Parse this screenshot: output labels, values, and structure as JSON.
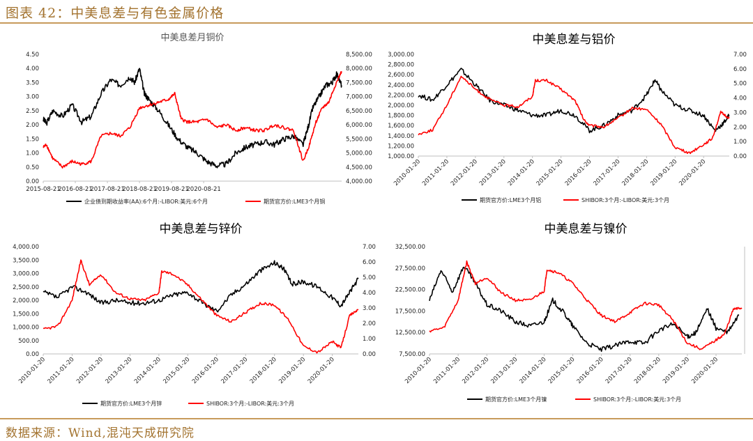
{
  "header": {
    "title": "图表 42：中美息差与有色金属价格"
  },
  "footer": {
    "source": "数据来源：Wind,混沌天成研究院"
  },
  "chart_data": [
    {
      "type": "line",
      "title": "中美息差月铜价",
      "x_ticks": [
        "2015-08-21",
        "2016-08-21",
        "2017-08-21",
        "2018-08-21",
        "2019-08-21",
        "2020-08-21"
      ],
      "y_left_ticks": [
        "0.00",
        "0.50",
        "1.00",
        "1.50",
        "2.00",
        "2.50",
        "3.00",
        "3.50",
        "4.00",
        "4.50"
      ],
      "y_right_ticks": [
        "4,000.00",
        "4,500.00",
        "5,000.00",
        "5,500.00",
        "6,000.00",
        "6,500.00",
        "7,000.00",
        "7,500.00",
        "8,000.00",
        "8,500.00"
      ],
      "ylim_left": [
        0,
        4.5
      ],
      "ylim_right": [
        4000,
        8500
      ],
      "series": [
        {
          "name": "企业债到期收益率(AA):6个月:-LIBOR:美元:6个月",
          "axis": "left",
          "color": "#000000",
          "points": [
            [
              0,
              2.2
            ],
            [
              0.1,
              2.05
            ],
            [
              0.3,
              2.5
            ],
            [
              0.6,
              2.3
            ],
            [
              0.9,
              2.7
            ],
            [
              1.2,
              2.1
            ],
            [
              1.5,
              2.3
            ],
            [
              1.8,
              3.1
            ],
            [
              2.1,
              3.6
            ],
            [
              2.4,
              3.4
            ],
            [
              2.7,
              3.7
            ],
            [
              2.85,
              3.5
            ],
            [
              3.0,
              4.0
            ],
            [
              3.15,
              3.1
            ],
            [
              3.3,
              2.9
            ],
            [
              3.6,
              2.5
            ],
            [
              3.9,
              2.0
            ],
            [
              4.2,
              1.5
            ],
            [
              4.5,
              1.2
            ],
            [
              4.8,
              1.0
            ],
            [
              5.1,
              0.7
            ],
            [
              5.4,
              0.55
            ],
            [
              5.7,
              0.6
            ],
            [
              6.0,
              1.0
            ],
            [
              6.3,
              1.2
            ],
            [
              6.6,
              1.3
            ],
            [
              6.9,
              1.4
            ],
            [
              7.2,
              1.3
            ],
            [
              7.5,
              1.5
            ],
            [
              7.8,
              1.6
            ],
            [
              8.1,
              1.3
            ],
            [
              8.25,
              1.9
            ],
            [
              8.4,
              2.6
            ],
            [
              8.6,
              3.0
            ],
            [
              8.8,
              3.4
            ],
            [
              9.0,
              3.5
            ],
            [
              9.15,
              3.8
            ],
            [
              9.3,
              3.4
            ]
          ]
        },
        {
          "name": "期货官方价:LME3个月铜",
          "axis": "right",
          "color": "#ff0000",
          "points": [
            [
              0,
              5200
            ],
            [
              0.1,
              5300
            ],
            [
              0.3,
              4800
            ],
            [
              0.6,
              4500
            ],
            [
              0.9,
              4700
            ],
            [
              1.2,
              4600
            ],
            [
              1.5,
              4700
            ],
            [
              1.8,
              5600
            ],
            [
              2.1,
              5700
            ],
            [
              2.4,
              5600
            ],
            [
              2.7,
              5900
            ],
            [
              3.0,
              6600
            ],
            [
              3.3,
              6700
            ],
            [
              3.6,
              6800
            ],
            [
              3.9,
              6900
            ],
            [
              4.1,
              7100
            ],
            [
              4.3,
              6200
            ],
            [
              4.5,
              6100
            ],
            [
              4.8,
              6100
            ],
            [
              5.1,
              6200
            ],
            [
              5.4,
              5900
            ],
            [
              5.7,
              6000
            ],
            [
              6.0,
              5800
            ],
            [
              6.3,
              5900
            ],
            [
              6.6,
              5800
            ],
            [
              6.9,
              5800
            ],
            [
              7.2,
              6000
            ],
            [
              7.5,
              5900
            ],
            [
              7.8,
              5800
            ],
            [
              8.1,
              4700
            ],
            [
              8.3,
              5300
            ],
            [
              8.5,
              6100
            ],
            [
              8.7,
              6600
            ],
            [
              8.9,
              6800
            ],
            [
              9.1,
              7400
            ],
            [
              9.3,
              7900
            ]
          ]
        }
      ]
    },
    {
      "type": "line",
      "title": "中美息差与铝价",
      "x_ticks": [
        "2010-01-20",
        "2011-01-20",
        "2012-01-20",
        "2013-01-20",
        "2014-01-20",
        "2015-01-20",
        "2016-01-20",
        "2017-01-20",
        "2018-01-20",
        "2019-01-20",
        "2020-01-20"
      ],
      "y_left_ticks": [
        "1,000.00",
        "1,200.00",
        "1,400.00",
        "1,600.00",
        "1,800.00",
        "2,000.00",
        "2,200.00",
        "2,400.00",
        "2,600.00",
        "2,800.00",
        "3,000.00"
      ],
      "y_right_ticks": [
        "0.00",
        "1.00",
        "2.00",
        "3.00",
        "4.00",
        "5.00",
        "6.00",
        "7.00"
      ],
      "ylim_left": [
        1000,
        3000
      ],
      "ylim_right": [
        0,
        7
      ],
      "series": [
        {
          "name": "期货官方价:LME3个月铝",
          "axis": "left",
          "color": "#000000",
          "points": [
            [
              0,
              2200
            ],
            [
              0.5,
              2100
            ],
            [
              1.0,
              2400
            ],
            [
              1.5,
              2700
            ],
            [
              2.0,
              2400
            ],
            [
              2.5,
              2100
            ],
            [
              3.0,
              2000
            ],
            [
              3.5,
              1900
            ],
            [
              4.0,
              1800
            ],
            [
              4.5,
              1800
            ],
            [
              5.0,
              1900
            ],
            [
              5.5,
              1800
            ],
            [
              6.0,
              1500
            ],
            [
              6.5,
              1600
            ],
            [
              7.0,
              1800
            ],
            [
              7.5,
              1900
            ],
            [
              8.0,
              2200
            ],
            [
              8.3,
              2500
            ],
            [
              8.5,
              2300
            ],
            [
              9.0,
              2000
            ],
            [
              9.5,
              1900
            ],
            [
              10.0,
              1800
            ],
            [
              10.4,
              1500
            ],
            [
              10.7,
              1650
            ],
            [
              10.9,
              1800
            ]
          ]
        },
        {
          "name": "SHIBOR:3个月:-LIBOR:美元:3个月",
          "axis": "right",
          "color": "#ff0000",
          "points": [
            [
              0,
              1.5
            ],
            [
              0.5,
              1.8
            ],
            [
              1.0,
              3.5
            ],
            [
              1.5,
              5.5
            ],
            [
              2.0,
              4.6
            ],
            [
              2.5,
              3.9
            ],
            [
              3.0,
              3.5
            ],
            [
              3.5,
              3.4
            ],
            [
              4.0,
              4.1
            ],
            [
              4.1,
              5.2
            ],
            [
              4.5,
              5.2
            ],
            [
              5.0,
              4.6
            ],
            [
              5.5,
              3.8
            ],
            [
              5.8,
              2.5
            ],
            [
              6.0,
              2.1
            ],
            [
              6.5,
              2.0
            ],
            [
              7.0,
              2.6
            ],
            [
              7.5,
              3.3
            ],
            [
              8.0,
              3.2
            ],
            [
              8.5,
              2.2
            ],
            [
              9.0,
              0.6
            ],
            [
              9.5,
              0.2
            ],
            [
              10.0,
              0.8
            ],
            [
              10.3,
              1.2
            ],
            [
              10.6,
              3.0
            ],
            [
              10.9,
              2.6
            ]
          ]
        }
      ]
    },
    {
      "type": "line",
      "title": "中美息差与锌价",
      "x_ticks": [
        "2010-01-20",
        "2011-01-20",
        "2012-01-20",
        "2013-01-20",
        "2014-01-20",
        "2015-01-20",
        "2016-01-20",
        "2017-01-20",
        "2018-01-20",
        "2019-01-20",
        "2020-01-20"
      ],
      "y_left_ticks": [
        "0.00",
        "500.00",
        "1,000.00",
        "1,500.00",
        "2,000.00",
        "2,500.00",
        "3,000.00",
        "3,500.00",
        "4,000.00"
      ],
      "y_right_ticks": [
        "0.00",
        "1.00",
        "2.00",
        "3.00",
        "4.00",
        "5.00",
        "6.00",
        "7.00"
      ],
      "ylim_left": [
        0,
        4000
      ],
      "ylim_right": [
        0,
        7
      ],
      "series": [
        {
          "name": "期货官方价:LME3个月锌",
          "axis": "left",
          "color": "#000000",
          "points": [
            [
              0,
              2300
            ],
            [
              0.5,
              2100
            ],
            [
              1.0,
              2500
            ],
            [
              1.5,
              2300
            ],
            [
              2.0,
              1900
            ],
            [
              2.5,
              2000
            ],
            [
              3.0,
              1900
            ],
            [
              3.5,
              1900
            ],
            [
              4.0,
              2000
            ],
            [
              4.5,
              2200
            ],
            [
              5.0,
              2300
            ],
            [
              5.5,
              1900
            ],
            [
              6.0,
              1600
            ],
            [
              6.5,
              2200
            ],
            [
              7.0,
              2600
            ],
            [
              7.5,
              3100
            ],
            [
              8.0,
              3400
            ],
            [
              8.3,
              3200
            ],
            [
              8.6,
              2600
            ],
            [
              9.0,
              2700
            ],
            [
              9.5,
              2500
            ],
            [
              10.0,
              2100
            ],
            [
              10.3,
              1800
            ],
            [
              10.6,
              2300
            ],
            [
              10.9,
              2800
            ]
          ]
        },
        {
          "name": "SHIBOR:3个月:-LIBOR:美元:3个月",
          "axis": "right",
          "color": "#ff0000",
          "points": [
            [
              0,
              1.6
            ],
            [
              0.5,
              1.8
            ],
            [
              1.0,
              3.5
            ],
            [
              1.3,
              6.1
            ],
            [
              1.6,
              4.5
            ],
            [
              2.0,
              5.2
            ],
            [
              2.5,
              4.0
            ],
            [
              3.0,
              3.6
            ],
            [
              3.5,
              3.5
            ],
            [
              4.0,
              4.0
            ],
            [
              4.1,
              5.4
            ],
            [
              4.5,
              5.2
            ],
            [
              5.0,
              4.5
            ],
            [
              5.5,
              3.5
            ],
            [
              6.0,
              2.5
            ],
            [
              6.5,
              2.1
            ],
            [
              7.0,
              2.7
            ],
            [
              7.5,
              3.3
            ],
            [
              8.0,
              3.2
            ],
            [
              8.5,
              2.2
            ],
            [
              9.0,
              0.5
            ],
            [
              9.5,
              0.1
            ],
            [
              10.0,
              0.8
            ],
            [
              10.3,
              0.4
            ],
            [
              10.6,
              2.5
            ],
            [
              10.9,
              2.9
            ]
          ]
        }
      ]
    },
    {
      "type": "line",
      "title": "中美息差与镍价",
      "x_ticks": [
        "2010-01-20",
        "2011-01-20",
        "2012-01-20",
        "2013-01-20",
        "2014-01-20",
        "2015-01-20",
        "2016-01-20",
        "2017-01-20",
        "2018-01-20",
        "2019-01-20",
        "2020-01-20"
      ],
      "y_left_ticks": [
        "7,500.00",
        "12,500.00",
        "17,500.00",
        "22,500.00",
        "27,500.00",
        "32,500.00"
      ],
      "y_right_ticks": [],
      "ylim_left": [
        7500,
        32500
      ],
      "ylim_right": [
        0,
        7
      ],
      "series": [
        {
          "name": "期货官方价:LME3个月镍",
          "axis": "left",
          "color": "#000000",
          "points": [
            [
              0,
              20000
            ],
            [
              0.4,
              27000
            ],
            [
              0.8,
              22000
            ],
            [
              1.2,
              28000
            ],
            [
              1.6,
              24000
            ],
            [
              2.0,
              19000
            ],
            [
              2.5,
              17500
            ],
            [
              3.0,
              15000
            ],
            [
              3.5,
              14000
            ],
            [
              4.0,
              15000
            ],
            [
              4.3,
              20000
            ],
            [
              4.7,
              17000
            ],
            [
              5.0,
              14000
            ],
            [
              5.5,
              10000
            ],
            [
              6.0,
              8500
            ],
            [
              6.5,
              9500
            ],
            [
              7.0,
              10500
            ],
            [
              7.5,
              10000
            ],
            [
              8.0,
              13000
            ],
            [
              8.5,
              14500
            ],
            [
              9.0,
              11500
            ],
            [
              9.3,
              12500
            ],
            [
              9.7,
              18000
            ],
            [
              10.0,
              13500
            ],
            [
              10.4,
              12500
            ],
            [
              10.8,
              16500
            ]
          ]
        },
        {
          "name": "SHIBOR:3个月:-LIBOR:美元:3个月",
          "axis": "right",
          "color": "#ff0000",
          "points": [
            [
              0,
              1.5
            ],
            [
              0.5,
              1.7
            ],
            [
              1.0,
              3.5
            ],
            [
              1.3,
              6.0
            ],
            [
              1.6,
              4.6
            ],
            [
              2.0,
              5.0
            ],
            [
              2.5,
              4.0
            ],
            [
              3.0,
              3.5
            ],
            [
              3.5,
              3.5
            ],
            [
              4.0,
              4.1
            ],
            [
              4.1,
              5.5
            ],
            [
              4.5,
              5.3
            ],
            [
              5.0,
              4.6
            ],
            [
              5.5,
              3.5
            ],
            [
              6.0,
              2.5
            ],
            [
              6.5,
              2.1
            ],
            [
              7.0,
              2.7
            ],
            [
              7.5,
              3.3
            ],
            [
              8.0,
              3.2
            ],
            [
              8.5,
              2.2
            ],
            [
              9.0,
              0.7
            ],
            [
              9.5,
              0.3
            ],
            [
              10.0,
              0.9
            ],
            [
              10.3,
              1.3
            ],
            [
              10.6,
              2.9
            ],
            [
              10.9,
              3.0
            ]
          ]
        }
      ]
    }
  ]
}
